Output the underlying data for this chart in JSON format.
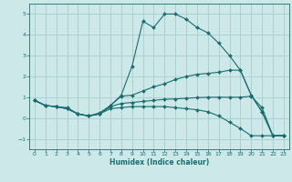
{
  "xlabel": "Humidex (Indice chaleur)",
  "xlim": [
    -0.5,
    23.5
  ],
  "ylim": [
    -1.5,
    5.5
  ],
  "yticks": [
    -1,
    0,
    1,
    2,
    3,
    4,
    5
  ],
  "xticks": [
    0,
    1,
    2,
    3,
    4,
    5,
    6,
    7,
    8,
    9,
    10,
    11,
    12,
    13,
    14,
    15,
    16,
    17,
    18,
    19,
    20,
    21,
    22,
    23
  ],
  "bg_color": "#cce8e8",
  "grid_color": "#aacccc",
  "line_color": "#1a6e6e",
  "line1_x": [
    0,
    1,
    2,
    3,
    4,
    5,
    6,
    7,
    8,
    9,
    10,
    11,
    12,
    13,
    14,
    15,
    16,
    17,
    18,
    19,
    20,
    21,
    22,
    23
  ],
  "line1_y": [
    0.85,
    0.6,
    0.55,
    0.5,
    0.2,
    0.1,
    0.25,
    0.6,
    1.1,
    2.5,
    4.65,
    4.35,
    5.0,
    5.0,
    4.75,
    4.35,
    4.1,
    3.6,
    3.0,
    2.3,
    1.1,
    0.3,
    -0.85,
    -0.85
  ],
  "line2_x": [
    0,
    1,
    2,
    3,
    4,
    5,
    6,
    7,
    8,
    9,
    10,
    11,
    12,
    13,
    14,
    15,
    16,
    17,
    18,
    19,
    20,
    21,
    22,
    23
  ],
  "line2_y": [
    0.85,
    0.6,
    0.55,
    0.45,
    0.2,
    0.1,
    0.2,
    0.6,
    1.05,
    1.1,
    1.3,
    1.5,
    1.65,
    1.85,
    2.0,
    2.1,
    2.15,
    2.2,
    2.3,
    2.3,
    1.1,
    0.3,
    -0.85,
    -0.85
  ],
  "line3_x": [
    0,
    1,
    2,
    3,
    4,
    5,
    6,
    7,
    8,
    9,
    10,
    11,
    12,
    13,
    14,
    15,
    16,
    17,
    18,
    19,
    20,
    21,
    22,
    23
  ],
  "line3_y": [
    0.85,
    0.6,
    0.55,
    0.45,
    0.2,
    0.1,
    0.2,
    0.55,
    0.7,
    0.75,
    0.8,
    0.85,
    0.9,
    0.92,
    0.95,
    0.98,
    1.0,
    1.0,
    1.0,
    1.0,
    1.05,
    0.5,
    -0.85,
    -0.85
  ],
  "line4_x": [
    0,
    1,
    2,
    3,
    4,
    5,
    6,
    7,
    8,
    9,
    10,
    11,
    12,
    13,
    14,
    15,
    16,
    17,
    18,
    19,
    20,
    21,
    22,
    23
  ],
  "line4_y": [
    0.85,
    0.6,
    0.55,
    0.45,
    0.2,
    0.1,
    0.2,
    0.45,
    0.5,
    0.55,
    0.55,
    0.55,
    0.55,
    0.5,
    0.45,
    0.4,
    0.3,
    0.1,
    -0.2,
    -0.5,
    -0.85,
    -0.85,
    -0.85,
    -0.85
  ],
  "xlabel_fontsize": 5.5,
  "tick_fontsize": 4.5,
  "line_width": 0.8,
  "marker_size": 2.0
}
